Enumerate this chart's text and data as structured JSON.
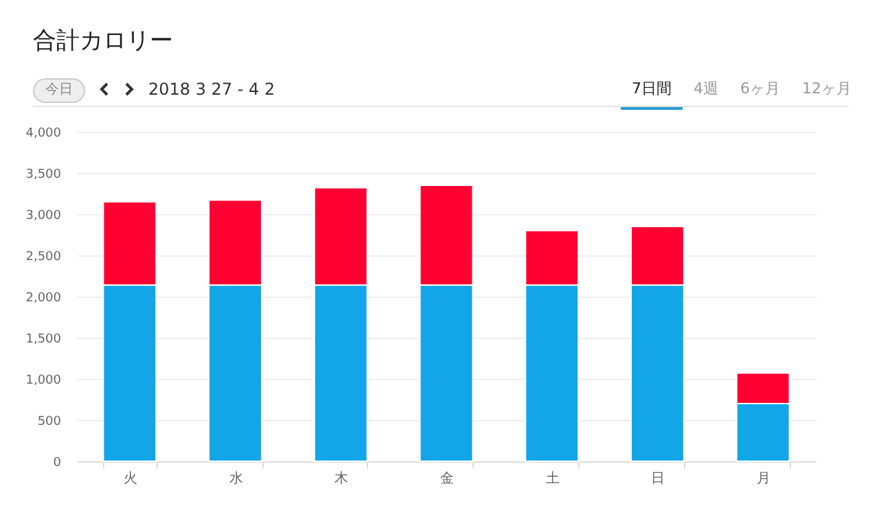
{
  "chart_data": {
    "type": "bar",
    "title": "合計カロリー",
    "subtitle": "2018 3 27 - 4 2",
    "annotations": [
      "今日",
      "7日間",
      "4週",
      "6ヶ月",
      "12ヶ月"
    ],
    "categories": [
      "火",
      "水",
      "木",
      "金",
      "土",
      "日",
      "月"
    ],
    "stacked": true,
    "series": [
      {
        "color": "#12a5e8",
        "values": [
          2140,
          2140,
          2140,
          2140,
          2140,
          2140,
          700
        ]
      },
      {
        "color": "#ff0033",
        "values": [
          1010,
          1030,
          1180,
          1210,
          660,
          710,
          370
        ]
      }
    ],
    "ylim": [
      0,
      4000
    ],
    "yticks": [
      0,
      500,
      {
        "value": 1000,
        "label": "1,000"
      },
      {
        "value": 1500,
        "label": "1,500"
      },
      {
        "value": 2000,
        "label": "2,000"
      },
      {
        "value": 2500,
        "label": "2,500"
      },
      {
        "value": 3000,
        "label": "3,000"
      },
      {
        "value": 3500,
        "label": "3,500"
      },
      {
        "value": 4000,
        "label": "4,000"
      }
    ],
    "grid": "y"
  }
}
